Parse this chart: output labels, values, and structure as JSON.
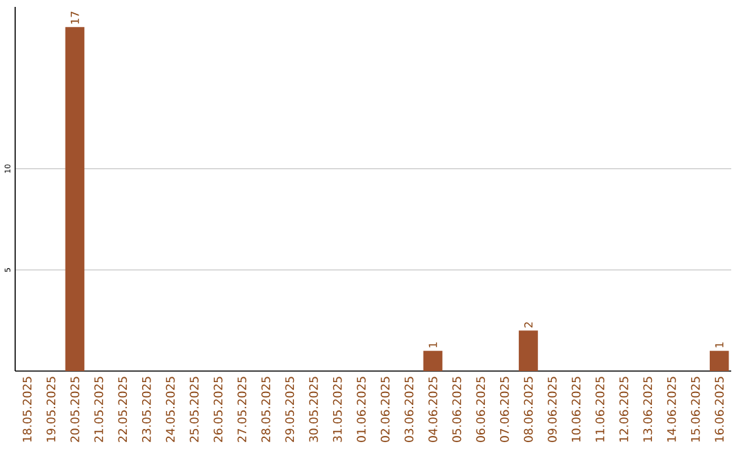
{
  "chart_data": {
    "type": "bar",
    "categories": [
      "18.05.2025",
      "19.05.2025",
      "20.05.2025",
      "21.05.2025",
      "22.05.2025",
      "23.05.2025",
      "24.05.2025",
      "25.05.2025",
      "26.05.2025",
      "27.05.2025",
      "28.05.2025",
      "29.05.2025",
      "30.05.2025",
      "31.05.2025",
      "01.06.2025",
      "02.06.2025",
      "03.06.2025",
      "04.06.2025",
      "05.06.2025",
      "06.06.2025",
      "07.06.2025",
      "08.06.2025",
      "09.06.2025",
      "10.06.2025",
      "11.06.2025",
      "12.06.2025",
      "13.06.2025",
      "14.06.2025",
      "15.06.2025",
      "16.06.2025"
    ],
    "values": [
      0,
      0,
      17,
      0,
      0,
      0,
      0,
      0,
      0,
      0,
      0,
      0,
      0,
      0,
      0,
      0,
      0,
      1,
      0,
      0,
      0,
      2,
      0,
      0,
      0,
      0,
      0,
      0,
      0,
      1
    ],
    "value_labels": [
      null,
      null,
      "17",
      null,
      null,
      null,
      null,
      null,
      null,
      null,
      null,
      null,
      null,
      null,
      null,
      null,
      null,
      "1",
      null,
      null,
      null,
      "2",
      null,
      null,
      null,
      null,
      null,
      null,
      null,
      "1"
    ],
    "color": "#a0522d",
    "ylim": [
      0,
      18
    ],
    "yticks": [
      5,
      10
    ],
    "grid": "y"
  }
}
